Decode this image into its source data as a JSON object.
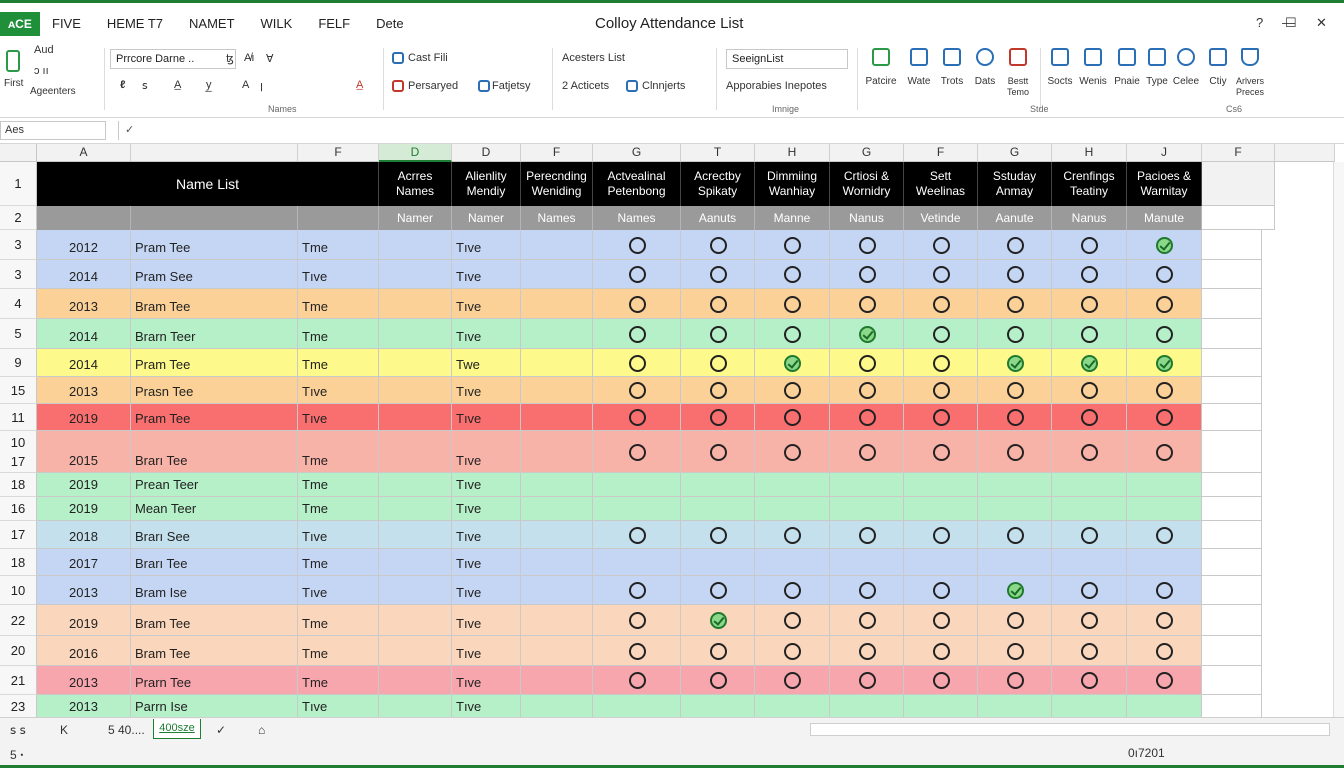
{
  "app": {
    "badge": "ᴀCE",
    "menu_tabs": [
      "FIVE",
      "HEME T7",
      "NAMET",
      "WILK",
      "FELF",
      "Dete"
    ],
    "doc_title": "Colloy Attendance List",
    "window_controls": {
      "help": "?",
      "minimize": "—",
      "restore": "☐",
      "close": "✕"
    }
  },
  "ribbon": {
    "clipboard": {
      "paste": "First",
      "cut": "Aud",
      "copy": "ↄ‌ ıı",
      "painter": "Ageenters"
    },
    "font": {
      "font_name": "Prrcore Darne ..",
      "size_arrow": "ꜩ",
      "grow": "A̸ı",
      "shrink": "Ɐ",
      "row2": [
        "ℓ",
        "ꜱ",
        "A̲",
        "y̲",
        "A",
        "ꞁ",
        "A̲"
      ],
      "group_label": "Names"
    },
    "alignment": {
      "wrap": "Cast Fili",
      "merge": "Persaryed",
      "format": "Fatjetsy",
      "group_label": ""
    },
    "styles": {
      "heading": "Acesters List",
      "actions": "2 Acticets",
      "conditional": "Clnnjerts",
      "group_label": ""
    },
    "number": {
      "format_box": "SeeignList",
      "options": "Apporabies Inepotes",
      "group_label": "Imnige"
    },
    "tools": [
      {
        "label": "Patcire",
        "icon": "palette-icon"
      },
      {
        "label": "Wate",
        "icon": "link-icon"
      },
      {
        "label": "Trots",
        "icon": "copy-icon"
      },
      {
        "label": "Dats",
        "icon": "database-icon"
      },
      {
        "label": "Bestt\nTemo",
        "icon": "alert-icon"
      },
      {
        "label": "Socts",
        "icon": "sort-icon"
      },
      {
        "label": "Wenis",
        "icon": "list-icon"
      },
      {
        "label": "Pnaie",
        "icon": "document-icon"
      },
      {
        "label": "Type",
        "icon": "file-icon"
      },
      {
        "label": "Celee",
        "icon": "search-icon"
      },
      {
        "label": "Ctiy",
        "icon": "preview-icon"
      },
      {
        "label": "Arlvers\nPreces",
        "icon": "flask-icon"
      }
    ],
    "tools_group_label": "Stde",
    "last_group_label": "Cs6"
  },
  "formula_bar": {
    "name_box": "Aes",
    "fx": "✓"
  },
  "columns": [
    {
      "letter": "A",
      "selected": false
    },
    {
      "letter": "",
      "selected": false
    },
    {
      "letter": "F",
      "selected": false
    },
    {
      "letter": "D",
      "selected": true
    },
    {
      "letter": "D",
      "selected": false
    },
    {
      "letter": "F",
      "selected": false
    },
    {
      "letter": "G",
      "selected": false
    },
    {
      "letter": "T",
      "selected": false
    },
    {
      "letter": "H",
      "selected": false
    },
    {
      "letter": "G",
      "selected": false
    },
    {
      "letter": "F",
      "selected": false
    },
    {
      "letter": "G",
      "selected": false
    },
    {
      "letter": "H",
      "selected": false
    },
    {
      "letter": "J",
      "selected": false
    },
    {
      "letter": "F",
      "selected": false
    }
  ],
  "table": {
    "title": "Name List",
    "headers": [
      "Acrres\nNames",
      "Alienlity\nMendiy",
      "Perecnding\nWeniding",
      "Actvealinal\nPetenbong",
      "Acrectby\nSpikaty",
      "Dimmiing\nWanhiay",
      "Crtiosi &\nWornidry",
      "Sett\nWeelinas",
      "Sstuday\nAnmay",
      "Crenfings\nTeatiny",
      "Pacioes &\nWarnitay"
    ],
    "subheaders": [
      "Namer",
      "Namer",
      "Names",
      "Names",
      "Aanuts",
      "Manne",
      "Nanus",
      "Vetinde",
      "Aanute",
      "Nanus",
      "Manute"
    ],
    "rows": [
      {
        "rownum": "3",
        "year": "2012",
        "name": "Pram Tee",
        "f": "Tme",
        "e": "Tıve",
        "color": "#c5d6f5",
        "checks": [
          0,
          0,
          0,
          0,
          0,
          0,
          0,
          2
        ]
      },
      {
        "rownum": "3",
        "year": "2014",
        "name": "Pram See",
        "f": "Tıve",
        "e": "Tıve",
        "color": "#c5d6f5",
        "checks": [
          0,
          0,
          0,
          0,
          0,
          0,
          0,
          0
        ]
      },
      {
        "rownum": "4",
        "year": "2013",
        "name": "Bram Tee",
        "f": "Tme",
        "e": "Tıve",
        "color": "#fbd198",
        "checks": [
          0,
          0,
          0,
          0,
          0,
          0,
          0,
          0
        ]
      },
      {
        "rownum": "5",
        "year": "2014",
        "name": "Brarn Teer",
        "f": "Tme",
        "e": "Tıve",
        "color": "#b5f0c8",
        "checks": [
          0,
          0,
          0,
          2,
          0,
          0,
          0,
          0
        ]
      },
      {
        "rownum": "9",
        "year": "2014",
        "name": "Pram Tee",
        "f": "Tme",
        "e": "Twe",
        "color": "#fdf98a",
        "checks": [
          0,
          0,
          2,
          0,
          0,
          2,
          2,
          2
        ]
      },
      {
        "rownum": "15",
        "year": "2013",
        "name": "Prasn Tee",
        "f": "Tıve",
        "e": "Tıve",
        "color": "#fbd198",
        "checks": [
          0,
          0,
          0,
          0,
          0,
          0,
          0,
          0
        ]
      },
      {
        "rownum": "11",
        "year": "2019",
        "name": "Pram Tee",
        "f": "Tıve",
        "e": "Tıve",
        "color": "#f96e6e",
        "checks": [
          0,
          0,
          0,
          0,
          0,
          0,
          0,
          0
        ]
      },
      {
        "rownum": "10\n17",
        "year": "2015",
        "name": "Brarı Tee",
        "f": "Tme",
        "e": "Tıve",
        "color": "#f8b3a8",
        "checks": [
          0,
          0,
          0,
          0,
          0,
          0,
          0,
          0
        ]
      },
      {
        "rownum": "18",
        "year": "2019",
        "name": "Prean Teer",
        "f": "Tme",
        "e": "Tıve",
        "color": "#b5f0c8",
        "checks": []
      },
      {
        "rownum": "16",
        "year": "2019",
        "name": "Mean Teer",
        "f": "Tme",
        "e": "Tıve",
        "color": "#b5f0c8",
        "checks": []
      },
      {
        "rownum": "17",
        "year": "2018",
        "name": "Brarı See",
        "f": "Tıve",
        "e": "Tıve",
        "color": "#c4e0ed",
        "checks": [
          0,
          0,
          0,
          0,
          0,
          0,
          0,
          0
        ]
      },
      {
        "rownum": "18",
        "year": "2017",
        "name": "Brarı Tee",
        "f": "Tme",
        "e": "Tıve",
        "color": "#c5d6f5",
        "checks": []
      },
      {
        "rownum": "10",
        "year": "2013",
        "name": "Bram Ise",
        "f": "Tıve",
        "e": "Tıve",
        "color": "#c5d6f5",
        "checks": [
          0,
          0,
          0,
          0,
          0,
          2,
          0,
          0
        ]
      },
      {
        "rownum": "22",
        "year": "2019",
        "name": "Bram Tee",
        "f": "Tme",
        "e": "Tıve",
        "color": "#fad6bc",
        "checks": [
          0,
          2,
          0,
          0,
          0,
          0,
          0,
          0
        ]
      },
      {
        "rownum": "20",
        "year": "2016",
        "name": "Bram Tee",
        "f": "Tme",
        "e": "Tıve",
        "color": "#fad6bc",
        "checks": [
          0,
          0,
          0,
          0,
          0,
          0,
          0,
          0
        ]
      },
      {
        "rownum": "21",
        "year": "2013",
        "name": "Prarn Tee",
        "f": "Tme",
        "e": "Tıve",
        "color": "#f8a6ad",
        "checks": [
          0,
          0,
          0,
          0,
          0,
          0,
          0,
          0
        ]
      },
      {
        "rownum": "23",
        "year": "2013",
        "name": "Parrn Ise",
        "f": "Tıve",
        "e": "Tıve",
        "color": "#b5f0c8",
        "checks": []
      }
    ]
  },
  "sheet_tabs": {
    "nav": "ꜱ ꜱ",
    "first": "K",
    "count": "5 40....",
    "active": "400sze",
    "check": "✓",
    "lock": "⌂"
  },
  "status": {
    "left": "5 ꞏ",
    "right": "0ı7201"
  }
}
